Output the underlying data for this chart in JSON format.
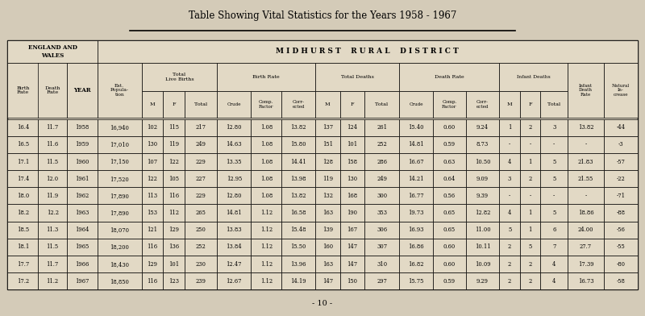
{
  "title": "Table Showing Vital Statistics for the Years 1958 - 1967",
  "bg_color": "#d4cbb8",
  "table_bg": "#e2d9c5",
  "rows": [
    [
      "16.4",
      "11.7",
      "1958",
      "16,940",
      "102",
      "115",
      "217",
      "12.80",
      "1.08",
      "13.82",
      "137",
      "124",
      "261",
      "15.40",
      "0.60",
      "9.24",
      "1",
      "2",
      "3",
      "13.82",
      "-44"
    ],
    [
      "16.5",
      "11.6",
      "1959",
      "17,010",
      "130",
      "119",
      "249",
      "14.63",
      "1.08",
      "15.80",
      "151",
      "101",
      "252",
      "14.81",
      "0.59",
      "8.73",
      "-",
      "-",
      "-",
      "-",
      "-3"
    ],
    [
      "17.1",
      "11.5",
      "1960",
      "17,150",
      "107",
      "122",
      "229",
      "13.35",
      "1.08",
      "14.41",
      "128",
      "158",
      "286",
      "16.67",
      "0.63",
      "10.50",
      "4",
      "1",
      "5",
      "21.83",
      "-57"
    ],
    [
      "17.4",
      "12.0",
      "1961",
      "17,520",
      "122",
      "105",
      "227",
      "12.95",
      "1.08",
      "13.98",
      "119",
      "130",
      "249",
      "14.21",
      "0.64",
      "9.09",
      "3",
      "2",
      "5",
      "21.55",
      "-22"
    ],
    [
      "18.0",
      "11.9",
      "1962",
      "17,890",
      "113",
      "116",
      "229",
      "12.80",
      "1.08",
      "13.82",
      "132",
      "168",
      "300",
      "16.77",
      "0.56",
      "9.39",
      "-",
      "-",
      "-",
      "-",
      "-71"
    ],
    [
      "18.2",
      "12.2",
      "1963",
      "17,890",
      "153",
      "112",
      "265",
      "14.81",
      "1.12",
      "16.58",
      "163",
      "190",
      "353",
      "19.73",
      "0.65",
      "12.82",
      "4",
      "1",
      "5",
      "18.86",
      "-88"
    ],
    [
      "18.5",
      "11.3",
      "1964",
      "18,070",
      "121",
      "129",
      "250",
      "13.83",
      "1.12",
      "15.48",
      "139",
      "167",
      "306",
      "16.93",
      "0.65",
      "11.00",
      "5",
      "1",
      "6",
      "24.00",
      "-56"
    ],
    [
      "18.1",
      "11.5",
      "1965",
      "18,200",
      "116",
      "136",
      "252",
      "13.84",
      "1.12",
      "15.50",
      "160",
      "147",
      "307",
      "16.86",
      "0.60",
      "10.11",
      "2",
      "5",
      "7",
      "27.7",
      "-55"
    ],
    [
      "17.7",
      "11.7",
      "1966",
      "18,430",
      "129",
      "101",
      "230",
      "12.47",
      "1.12",
      "13.96",
      "163",
      "147",
      "310",
      "16.82",
      "0.60",
      "10.09",
      "2",
      "2",
      "4",
      "17.39",
      "-80"
    ],
    [
      "17.2",
      "11.2",
      "1967",
      "18,850",
      "116",
      "123",
      "239",
      "12.67",
      "1.12",
      "14.19",
      "147",
      "150",
      "297",
      "15.75",
      "0.59",
      "9.29",
      "2",
      "2",
      "4",
      "16.73",
      "-58"
    ]
  ],
  "page_number": "- 10 -",
  "col_widths_rel": [
    3.0,
    2.8,
    3.0,
    4.3,
    2.1,
    2.1,
    3.2,
    3.3,
    3.0,
    3.3,
    2.4,
    2.4,
    3.4,
    3.3,
    3.2,
    3.3,
    2.0,
    2.0,
    2.7,
    3.5,
    3.3
  ]
}
